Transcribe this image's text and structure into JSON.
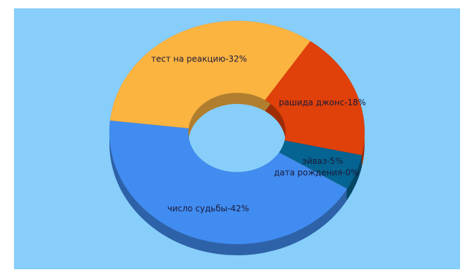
{
  "chart_data": {
    "type": "pie",
    "donut": true,
    "values": [
      18,
      5,
      0,
      42,
      32
    ],
    "value_labels": [
      "рашида джонс-18%",
      "эйваз-5%",
      "дата рождения-0%",
      "число судьбы-42%",
      "тест на реакцию-32%"
    ],
    "colors": [
      "#e0400a",
      "#056492",
      "#bfbfbf",
      "#418cf0",
      "#fcb441"
    ]
  }
}
